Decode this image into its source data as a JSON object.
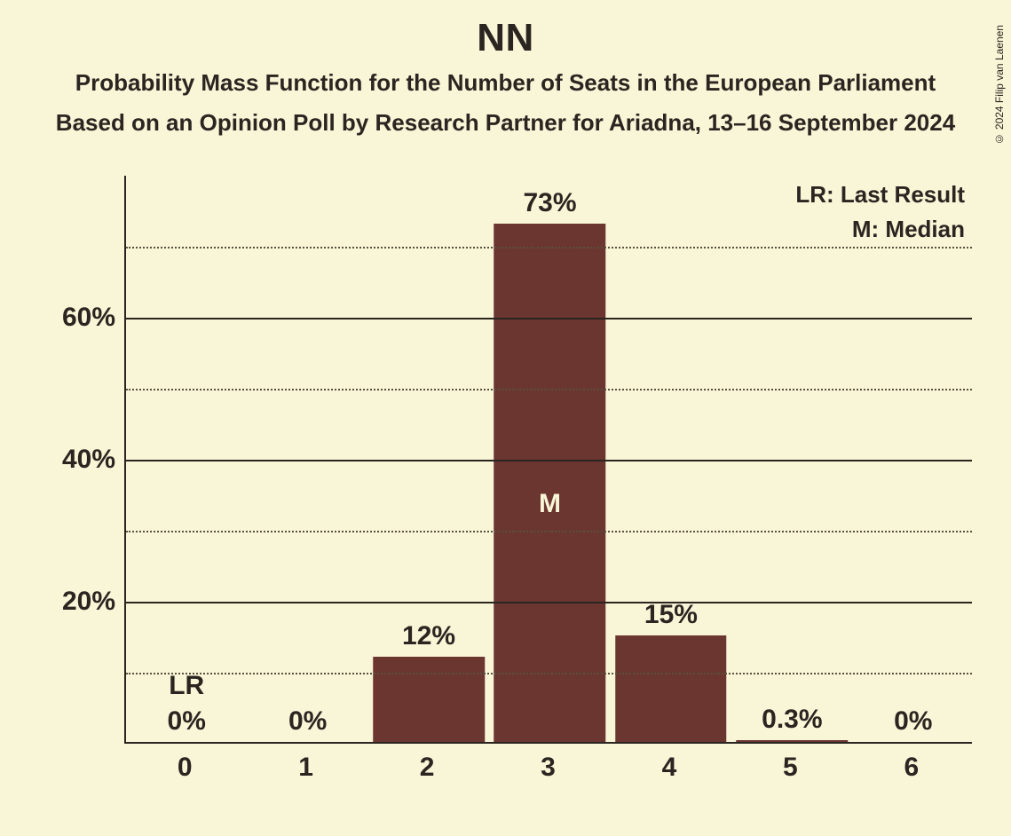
{
  "title": "NN",
  "subtitle1": "Probability Mass Function for the Number of Seats in the European Parliament",
  "subtitle2": "Based on an Opinion Poll by Research Partner for Ariadna, 13–16 September 2024",
  "copyright": "© 2024 Filip van Laenen",
  "legend": {
    "lr": "LR: Last Result",
    "m": "M: Median"
  },
  "chart": {
    "type": "bar",
    "background_color": "#f9f5d7",
    "bar_color": "#6b3530",
    "text_color": "#2a2520",
    "grid_major_color": "#2a2520",
    "grid_minor_color": "#58513f",
    "bar_inside_text_color": "#f9f5d7",
    "title_fontsize": 44,
    "subtitle_fontsize": 26,
    "axis_label_fontsize": 30,
    "value_label_fontsize": 30,
    "legend_fontsize": 26,
    "y_max": 80,
    "y_major_ticks": [
      20,
      40,
      60
    ],
    "y_minor_ticks": [
      10,
      30,
      50,
      70
    ],
    "bar_width_ratio": 0.92,
    "categories": [
      "0",
      "1",
      "2",
      "3",
      "4",
      "5",
      "6"
    ],
    "values": [
      0,
      0,
      12,
      73,
      15,
      0.3,
      0
    ],
    "value_labels": [
      "0%",
      "0%",
      "12%",
      "73%",
      "15%",
      "0.3%",
      "0%"
    ],
    "markers": [
      {
        "index": 0,
        "label": "LR",
        "inside": false
      },
      {
        "index": 3,
        "label": "M",
        "inside": true
      }
    ]
  }
}
